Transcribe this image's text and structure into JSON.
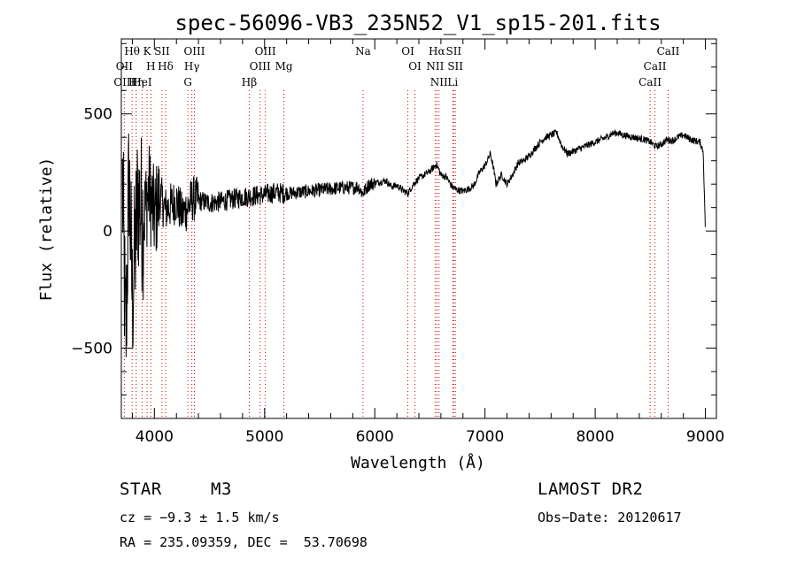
{
  "chart_data": {
    "type": "line",
    "title": "spec-56096-VB3_235N52_V1_sp15-201.fits",
    "xlabel": "Wavelength (Å)",
    "ylabel": "Flux (relative)",
    "xlim": [
      3700,
      9100
    ],
    "ylim": [
      -800,
      820
    ],
    "xticks": [
      4000,
      5000,
      6000,
      7000,
      8000,
      9000
    ],
    "yticks": [
      -500,
      0,
      500
    ],
    "grid": false,
    "series": [
      {
        "x": [
          3710,
          3740,
          3770,
          3800,
          3850,
          3900,
          3950,
          4000,
          4050,
          4100,
          4150,
          4200,
          4250,
          4300,
          4350,
          4400,
          4500,
          4600,
          4700,
          4800,
          4900,
          5000,
          5100,
          5200,
          5300,
          5400,
          5500,
          5600,
          5700,
          5800,
          5850,
          5890,
          5950,
          6000,
          6050,
          6100,
          6150,
          6200,
          6250,
          6300,
          6350,
          6400,
          6450,
          6500,
          6560,
          6600,
          6650,
          6700,
          6750,
          6800,
          6850,
          6900,
          6950,
          7000,
          7050,
          7080,
          7100,
          7150,
          7200,
          7250,
          7300,
          7350,
          7400,
          7450,
          7500,
          7550,
          7600,
          7650,
          7700,
          7750,
          7800,
          7850,
          7900,
          7950,
          8000,
          8050,
          8100,
          8150,
          8200,
          8250,
          8300,
          8350,
          8400,
          8450,
          8500,
          8550,
          8600,
          8650,
          8700,
          8750,
          8800,
          8850,
          8900,
          8950,
          8980,
          9000
        ],
        "y": [
          200,
          -500,
          250,
          -300,
          150,
          50,
          180,
          60,
          150,
          90,
          110,
          130,
          70,
          100,
          140,
          130,
          120,
          125,
          135,
          145,
          150,
          155,
          165,
          160,
          165,
          170,
          175,
          180,
          185,
          185,
          190,
          160,
          200,
          205,
          210,
          215,
          190,
          195,
          175,
          160,
          200,
          225,
          240,
          255,
          285,
          240,
          230,
          190,
          175,
          170,
          180,
          195,
          250,
          280,
          330,
          260,
          200,
          240,
          200,
          240,
          290,
          300,
          320,
          350,
          380,
          400,
          410,
          420,
          360,
          330,
          340,
          350,
          360,
          370,
          380,
          390,
          400,
          415,
          420,
          410,
          405,
          400,
          395,
          390,
          380,
          360,
          370,
          390,
          385,
          400,
          410,
          395,
          385,
          380,
          340,
          0
        ]
      }
    ],
    "annotations": [
      {
        "label": "Hθ",
        "x": 3798
      },
      {
        "label": "OII",
        "x": 3727
      },
      {
        "label": "OIII",
        "x": 3727
      },
      {
        "label": "HeI",
        "x": 3889
      },
      {
        "label": "Hη",
        "x": 3835
      },
      {
        "label": "K",
        "x": 3934
      },
      {
        "label": "SII",
        "x": 4069
      },
      {
        "label": "H",
        "x": 3968
      },
      {
        "label": "Hδ",
        "x": 4102
      },
      {
        "label": "OIII",
        "x": 4363
      },
      {
        "label": "Hγ",
        "x": 4340
      },
      {
        "label": "G",
        "x": 4304
      },
      {
        "label": "OIII",
        "x": 5007
      },
      {
        "label": "OIII",
        "x": 4959
      },
      {
        "label": "Hβ",
        "x": 4861
      },
      {
        "label": "Mg",
        "x": 5175
      },
      {
        "label": "Na",
        "x": 5893
      },
      {
        "label": "OI",
        "x": 6300
      },
      {
        "label": "OI",
        "x": 6364
      },
      {
        "label": "Hα",
        "x": 6563
      },
      {
        "label": "NII",
        "x": 6548
      },
      {
        "label": "NII",
        "x": 6583
      },
      {
        "label": "SII",
        "x": 6716
      },
      {
        "label": "SII",
        "x": 6731
      },
      {
        "label": "Li",
        "x": 6708
      },
      {
        "label": "CaII",
        "x": 8662
      },
      {
        "label": "CaII",
        "x": 8542
      },
      {
        "label": "CaII",
        "x": 8498
      }
    ]
  },
  "info": {
    "object_class": "STAR",
    "subclass": "M3",
    "redshift": "cz = −9.3 ± 1.5 km/s",
    "coordinates": "RA = 235.09359, DEC =  53.70698",
    "survey": "LAMOST DR2",
    "obs_date": "Obs−Date: 20120617"
  }
}
